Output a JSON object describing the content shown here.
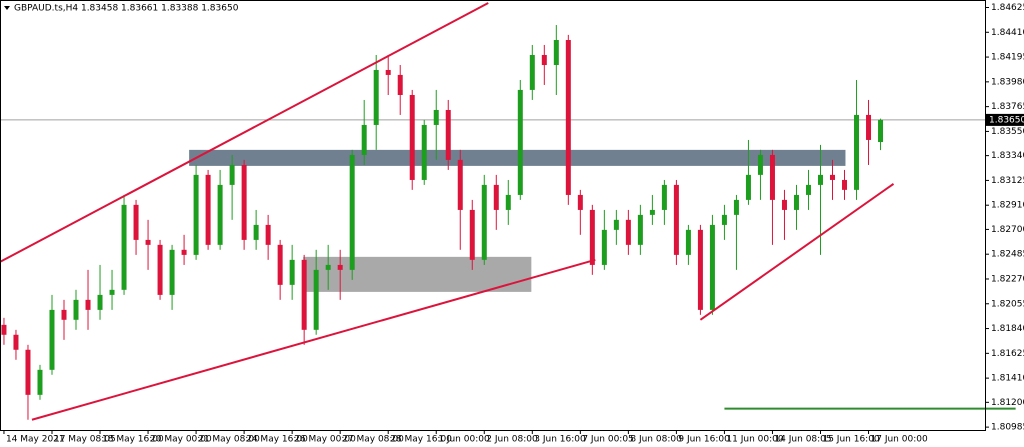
{
  "chart_data": {
    "type": "candlestick",
    "info_text": "GBPAUD.ts,H4  1.83458 1.83661 1.83388 1.83650",
    "categories": [
      "14 May 2021",
      null,
      null,
      null,
      "17 May 08:05",
      null,
      null,
      null,
      "18 May 16:00",
      null,
      null,
      null,
      "20 May 00:00",
      null,
      null,
      null,
      "21 May 08:00",
      null,
      null,
      null,
      "24 May 16:00",
      null,
      null,
      null,
      "26 May 00:00",
      null,
      null,
      null,
      "27 May 08:00",
      null,
      null,
      null,
      "28 May 16:00",
      null,
      null,
      null,
      "1 Jun 00:00",
      null,
      null,
      null,
      "2 Jun 08:00",
      null,
      null,
      null,
      "3 Jun 16:00",
      null,
      null,
      null,
      "7 Jun 00:05",
      null,
      null,
      null,
      "8 Jun 08:00",
      null,
      null,
      null,
      "9 Jun 16:00",
      null,
      null,
      null,
      "11 Jun 00:00",
      null,
      null,
      null,
      "14 Jun 08:05",
      null,
      null,
      null,
      "15 Jun 16:00",
      null,
      null,
      null,
      "17 Jun 00:00",
      null
    ],
    "open": [
      1.81872,
      1.81786,
      1.81656,
      1.81265,
      1.81482,
      1.82002,
      1.81916,
      1.82089,
      1.82002,
      1.82132,
      1.82176,
      1.82913,
      1.82609,
      1.82566,
      1.82132,
      1.82523,
      1.82479,
      1.83173,
      1.82566,
      1.83086,
      1.83259,
      1.82609,
      1.82739,
      1.82566,
      1.82219,
      1.82436,
      1.81829,
      1.82349,
      1.82392,
      1.82349,
      1.83346,
      1.83606,
      1.84083,
      1.8404,
      1.83866,
      1.83129,
      1.83606,
      1.83736,
      1.83303,
      1.82869,
      1.82436,
      1.83086,
      1.82869,
      1.82999,
      1.8391,
      1.84213,
      1.84126,
      1.84343,
      1.82999,
      1.82869,
      1.82392,
      1.82696,
      1.82783,
      1.82566,
      1.82826,
      1.82869,
      1.83086,
      1.82479,
      1.82696,
      1.82002,
      1.82739,
      1.82826,
      1.82956,
      1.83173,
      1.83346,
      1.82956,
      1.82869,
      1.82999,
      1.83086,
      1.83173,
      1.83129,
      1.83043,
      1.83693,
      1.83458
    ],
    "high": [
      1.81933,
      1.81829,
      1.81699,
      1.81525,
      1.82132,
      1.82089,
      1.82176,
      1.82349,
      1.82392,
      1.82349,
      1.82999,
      1.82956,
      1.82783,
      1.82609,
      1.82566,
      1.82653,
      1.83259,
      1.83216,
      1.83216,
      1.83346,
      1.83303,
      1.82869,
      1.82826,
      1.82609,
      1.82566,
      1.82479,
      1.82523,
      1.82566,
      1.82523,
      1.8339,
      1.83823,
      1.84213,
      1.84213,
      1.84126,
      1.8391,
      1.8365,
      1.8391,
      1.83823,
      1.8339,
      1.82956,
      1.83173,
      1.83173,
      1.83129,
      1.83996,
      1.843,
      1.843,
      1.84473,
      1.84387,
      1.83043,
      1.82913,
      1.82869,
      1.82869,
      1.82869,
      1.82913,
      1.82999,
      1.83129,
      1.83129,
      1.82739,
      1.82739,
      1.82826,
      1.82913,
      1.82999,
      1.83476,
      1.8339,
      1.8339,
      1.83043,
      1.83086,
      1.83216,
      1.83433,
      1.83303,
      1.83216,
      1.83996,
      1.83823,
      1.83661
    ],
    "low": [
      1.81699,
      1.81569,
      1.81049,
      1.81222,
      1.81439,
      1.81742,
      1.81829,
      1.81829,
      1.81916,
      1.82002,
      1.82132,
      1.82479,
      1.82349,
      1.82089,
      1.82002,
      1.82392,
      1.82436,
      1.82523,
      1.82523,
      1.82783,
      1.82523,
      1.82523,
      1.82436,
      1.82089,
      1.82089,
      1.81699,
      1.81786,
      1.82176,
      1.82089,
      1.82262,
      1.83259,
      1.8339,
      1.83866,
      1.83693,
      1.83043,
      1.83086,
      1.83303,
      1.83216,
      1.82523,
      1.82349,
      1.82392,
      1.82696,
      1.82739,
      1.82956,
      1.83823,
      1.83953,
      1.83866,
      1.82913,
      1.82653,
      1.82306,
      1.82349,
      1.82566,
      1.82479,
      1.82479,
      1.82739,
      1.82739,
      1.82392,
      1.82392,
      1.81959,
      1.81959,
      1.82609,
      1.82349,
      1.82913,
      1.82956,
      1.82566,
      1.82609,
      1.82696,
      1.82869,
      1.82479,
      1.82956,
      1.82956,
      1.82956,
      1.83259,
      1.83388
    ],
    "close": [
      1.81786,
      1.81656,
      1.81265,
      1.81482,
      1.82002,
      1.81916,
      1.82089,
      1.82002,
      1.82132,
      1.82176,
      1.82913,
      1.82609,
      1.82566,
      1.82132,
      1.82523,
      1.82479,
      1.83173,
      1.82566,
      1.83086,
      1.83259,
      1.82609,
      1.82739,
      1.82566,
      1.82219,
      1.82436,
      1.81829,
      1.82349,
      1.82392,
      1.82349,
      1.83346,
      1.83606,
      1.84083,
      1.8404,
      1.83866,
      1.83129,
      1.83606,
      1.83736,
      1.83303,
      1.82869,
      1.82436,
      1.83086,
      1.82869,
      1.82999,
      1.8391,
      1.84213,
      1.84126,
      1.84343,
      1.82999,
      1.82869,
      1.82392,
      1.82696,
      1.82783,
      1.82566,
      1.82826,
      1.82869,
      1.83086,
      1.82479,
      1.82696,
      1.82002,
      1.82739,
      1.82826,
      1.82956,
      1.83173,
      1.83346,
      1.82956,
      1.82869,
      1.82999,
      1.83086,
      1.83173,
      1.83129,
      1.83043,
      1.83693,
      1.83476,
      1.8365
    ],
    "up_color": "#1e9e1e",
    "down_color": "#dc143c",
    "ylim": [
      1.8096,
      1.8469
    ],
    "xlim": [
      -0.33,
      81.7
    ],
    "yticks": [
      1.84625,
      {
        "value": 1.8441,
        "label": "1.84410"
      },
      1.84195,
      {
        "value": 1.8398,
        "label": "1.83980"
      },
      1.83765,
      {
        "value": 1.8355,
        "label": "1.83550"
      },
      {
        "value": 1.8334,
        "label": "1.83340"
      },
      1.83125,
      {
        "value": 1.8291,
        "label": "1.82910"
      },
      {
        "value": 1.827,
        "label": "1.82700"
      },
      1.82485,
      {
        "value": 1.8227,
        "label": "1.82270"
      },
      1.82055,
      {
        "value": 1.8184,
        "label": "1.81840"
      },
      1.81625,
      {
        "value": 1.8141,
        "label": "1.81410"
      },
      {
        "value": 1.812,
        "label": "1.81200"
      },
      1.80985
    ],
    "current_price": {
      "value": 1.8365,
      "label": "1.83650"
    },
    "zones": [
      {
        "x": [
          15.42,
          70.08
        ],
        "y": [
          1.8339,
          1.83251
        ],
        "color": "#708090"
      },
      {
        "x": [
          24.92,
          43.92
        ],
        "y": [
          1.82462,
          1.82158
        ],
        "color": "#a9a9a9"
      }
    ],
    "trendlines": [
      {
        "x": [
          -0.33,
          40.33
        ],
        "y": [
          1.82418,
          1.84664
        ],
        "color": "#dc143c"
      },
      {
        "x": [
          2.33,
          49.25
        ],
        "y": [
          1.81049,
          1.82436
        ],
        "color": "#dc143c"
      },
      {
        "x": [
          58,
          74.08
        ],
        "y": [
          1.81916,
          1.83095
        ],
        "color": "#dc143c"
      },
      {
        "x": [
          60,
          84.25
        ],
        "y": [
          1.81145,
          1.81145
        ],
        "color": "#2e8b2e"
      }
    ]
  }
}
